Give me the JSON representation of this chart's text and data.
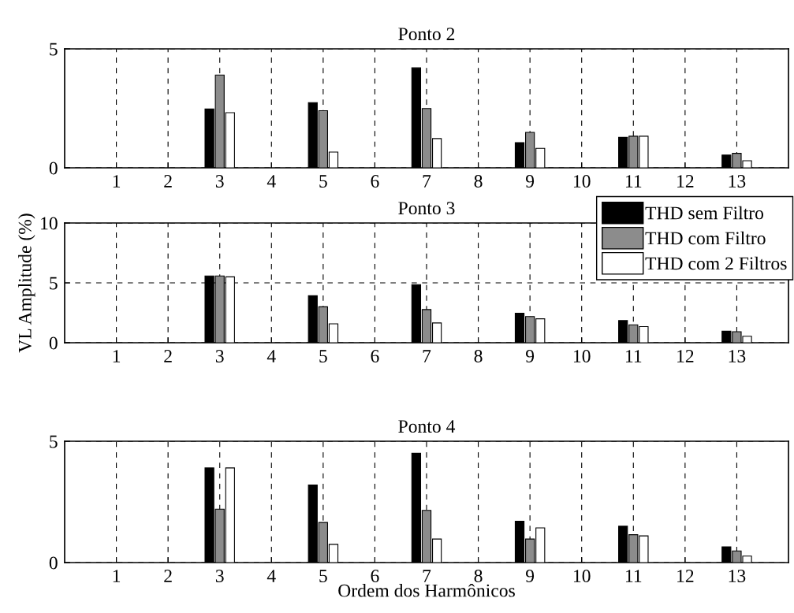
{
  "chart_data": [
    {
      "type": "bar",
      "title": "Ponto 2",
      "x": [
        3,
        5,
        7,
        9,
        11,
        13
      ],
      "xlim": [
        0,
        14
      ],
      "xticks": [
        1,
        2,
        3,
        4,
        5,
        6,
        7,
        8,
        9,
        10,
        11,
        12,
        13
      ],
      "ylim": [
        0,
        5
      ],
      "yticks": [
        0,
        5
      ],
      "grid": true,
      "legend": false,
      "series": [
        {
          "color": "#000000",
          "values": [
            2.47,
            2.74,
            4.2,
            1.06,
            1.28,
            0.54
          ]
        },
        {
          "color": "#8c8c8c",
          "values": [
            3.9,
            2.4,
            2.49,
            1.49,
            1.33,
            0.61
          ]
        },
        {
          "color": "#ffffff",
          "values": [
            2.32,
            0.66,
            1.23,
            0.82,
            1.33,
            0.3
          ]
        }
      ]
    },
    {
      "type": "bar",
      "title": "Ponto 3",
      "ylabel": "VL Amplitude (%)",
      "x": [
        3,
        5,
        7,
        9,
        11,
        13
      ],
      "xlim": [
        0,
        14
      ],
      "xticks": [
        1,
        2,
        3,
        4,
        5,
        6,
        7,
        8,
        9,
        10,
        11,
        12,
        13
      ],
      "ylim": [
        0,
        10
      ],
      "yticks": [
        0,
        5,
        10
      ],
      "grid": true,
      "legend": "top right",
      "series": [
        {
          "name": "THD sem Filtro",
          "color": "#000000",
          "values": [
            5.58,
            3.92,
            4.85,
            2.46,
            1.85,
            0.96
          ]
        },
        {
          "name": "THD com Filtro",
          "color": "#8c8c8c",
          "values": [
            5.58,
            3.0,
            2.77,
            2.19,
            1.5,
            0.92
          ]
        },
        {
          "name": "THD com 2 Filtros",
          "color": "#ffffff",
          "values": [
            5.5,
            1.58,
            1.65,
            2.0,
            1.35,
            0.54
          ]
        }
      ]
    },
    {
      "type": "bar",
      "title": "Ponto 4",
      "xlabel": "Ordem dos Harmônicos",
      "x": [
        3,
        5,
        7,
        9,
        11,
        13
      ],
      "xlim": [
        0,
        14
      ],
      "xticks": [
        1,
        2,
        3,
        4,
        5,
        6,
        7,
        8,
        9,
        10,
        11,
        12,
        13
      ],
      "ylim": [
        0,
        5
      ],
      "yticks": [
        0,
        5
      ],
      "grid": true,
      "legend": false,
      "series": [
        {
          "color": "#000000",
          "values": [
            3.9,
            3.2,
            4.5,
            1.7,
            1.5,
            0.65
          ]
        },
        {
          "color": "#8c8c8c",
          "values": [
            2.2,
            1.65,
            2.15,
            0.97,
            1.15,
            0.48
          ]
        },
        {
          "color": "#ffffff",
          "values": [
            3.9,
            0.75,
            0.97,
            1.43,
            1.1,
            0.27
          ]
        }
      ]
    }
  ]
}
